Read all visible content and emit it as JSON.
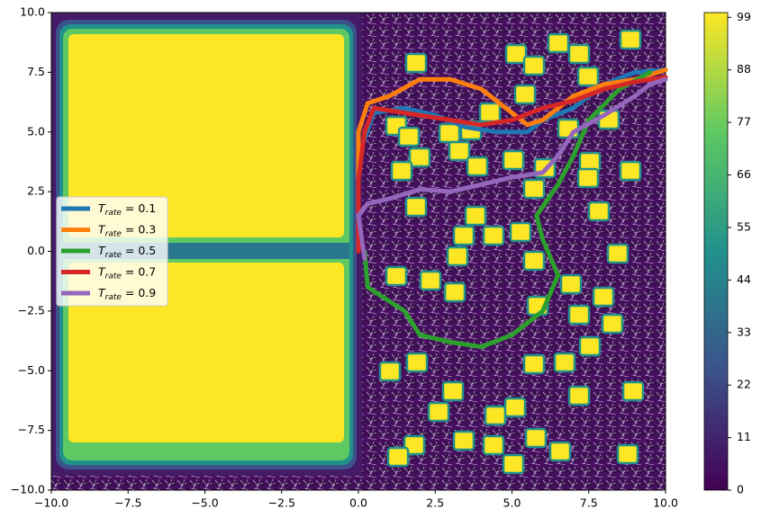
{
  "chart_data": {
    "type": "line",
    "xlim": [
      -10,
      10
    ],
    "ylim": [
      -10,
      10
    ],
    "xticks": [
      {
        "value": -10,
        "label": "−10.0"
      },
      {
        "value": -7.5,
        "label": "−7.5"
      },
      {
        "value": -5,
        "label": "−5.0"
      },
      {
        "value": -2.5,
        "label": "−2.5"
      },
      {
        "value": 0,
        "label": "0.0"
      },
      {
        "value": 2.5,
        "label": "2.5"
      },
      {
        "value": 5,
        "label": "5.0"
      },
      {
        "value": 7.5,
        "label": "7.5"
      },
      {
        "value": 10,
        "label": "10.0"
      }
    ],
    "yticks": [
      {
        "value": -10,
        "label": "−10.0"
      },
      {
        "value": -7.5,
        "label": "−7.5"
      },
      {
        "value": -5,
        "label": "−5.0"
      },
      {
        "value": -2.5,
        "label": "−2.5"
      },
      {
        "value": 0,
        "label": "0.0"
      },
      {
        "value": 2.5,
        "label": "2.5"
      },
      {
        "value": 5,
        "label": "5.0"
      },
      {
        "value": 7.5,
        "label": "7.5"
      },
      {
        "value": 10,
        "label": "10.0"
      }
    ],
    "legend": "center left",
    "series": [
      {
        "name": "Trate = 0.1",
        "color": "#1f77b4",
        "x": [
          0,
          0.5,
          1.5,
          2.5,
          3.5,
          4.5,
          5.5,
          6,
          7,
          8,
          9,
          10
        ],
        "y": [
          4,
          5.8,
          6,
          5.7,
          5.2,
          5,
          5,
          5.5,
          6,
          7,
          7.5,
          7.6
        ]
      },
      {
        "name": "Trate = 0.3",
        "color": "#ff7f0e",
        "x": [
          0,
          0,
          0,
          0.3,
          1,
          2,
          3,
          4,
          5,
          5.5,
          6,
          6.5,
          7,
          8,
          9,
          10
        ],
        "y": [
          0.5,
          3,
          5,
          6.2,
          6.5,
          7.2,
          7.2,
          6.8,
          5.8,
          5.3,
          5.5,
          6,
          6.5,
          7,
          7.2,
          7.6
        ]
      },
      {
        "name": "Trate = 0.5",
        "color": "#2ca02c",
        "x": [
          0.2,
          0.3,
          1.5,
          2,
          3,
          4,
          5,
          6,
          6.5,
          6,
          5.8,
          6.5,
          7,
          7.5,
          8.5,
          9.5
        ],
        "y": [
          0,
          -1.5,
          -2.5,
          -3.5,
          -3.8,
          -4,
          -3.5,
          -2.5,
          -1,
          0.5,
          1.5,
          2.8,
          4,
          5.5,
          6.8,
          7.5
        ]
      },
      {
        "name": "Trate = 0.7",
        "color": "#d62728",
        "x": [
          0,
          0,
          0.2,
          0.5,
          1.5,
          3,
          4,
          5,
          6,
          7,
          8,
          9,
          10
        ],
        "y": [
          0,
          3,
          5,
          6,
          5.8,
          5.5,
          5.3,
          5.5,
          6,
          6.3,
          6.8,
          7.1,
          7.3
        ]
      },
      {
        "name": "Trate = 0.9",
        "color": "#9467bd",
        "x": [
          0.2,
          0,
          0.3,
          1,
          2,
          3,
          4,
          5,
          6,
          6.5,
          7,
          8,
          9,
          9.5,
          10
        ],
        "y": [
          -0.3,
          1.5,
          2,
          2.2,
          2.6,
          2.5,
          2.8,
          3.1,
          3.3,
          4,
          5,
          5.7,
          6.5,
          7,
          7.2
        ]
      }
    ],
    "colorbar": {
      "lim": [
        0,
        100
      ],
      "ticks": [
        0,
        11,
        22,
        33,
        44,
        55,
        66,
        77,
        88,
        99
      ]
    }
  }
}
